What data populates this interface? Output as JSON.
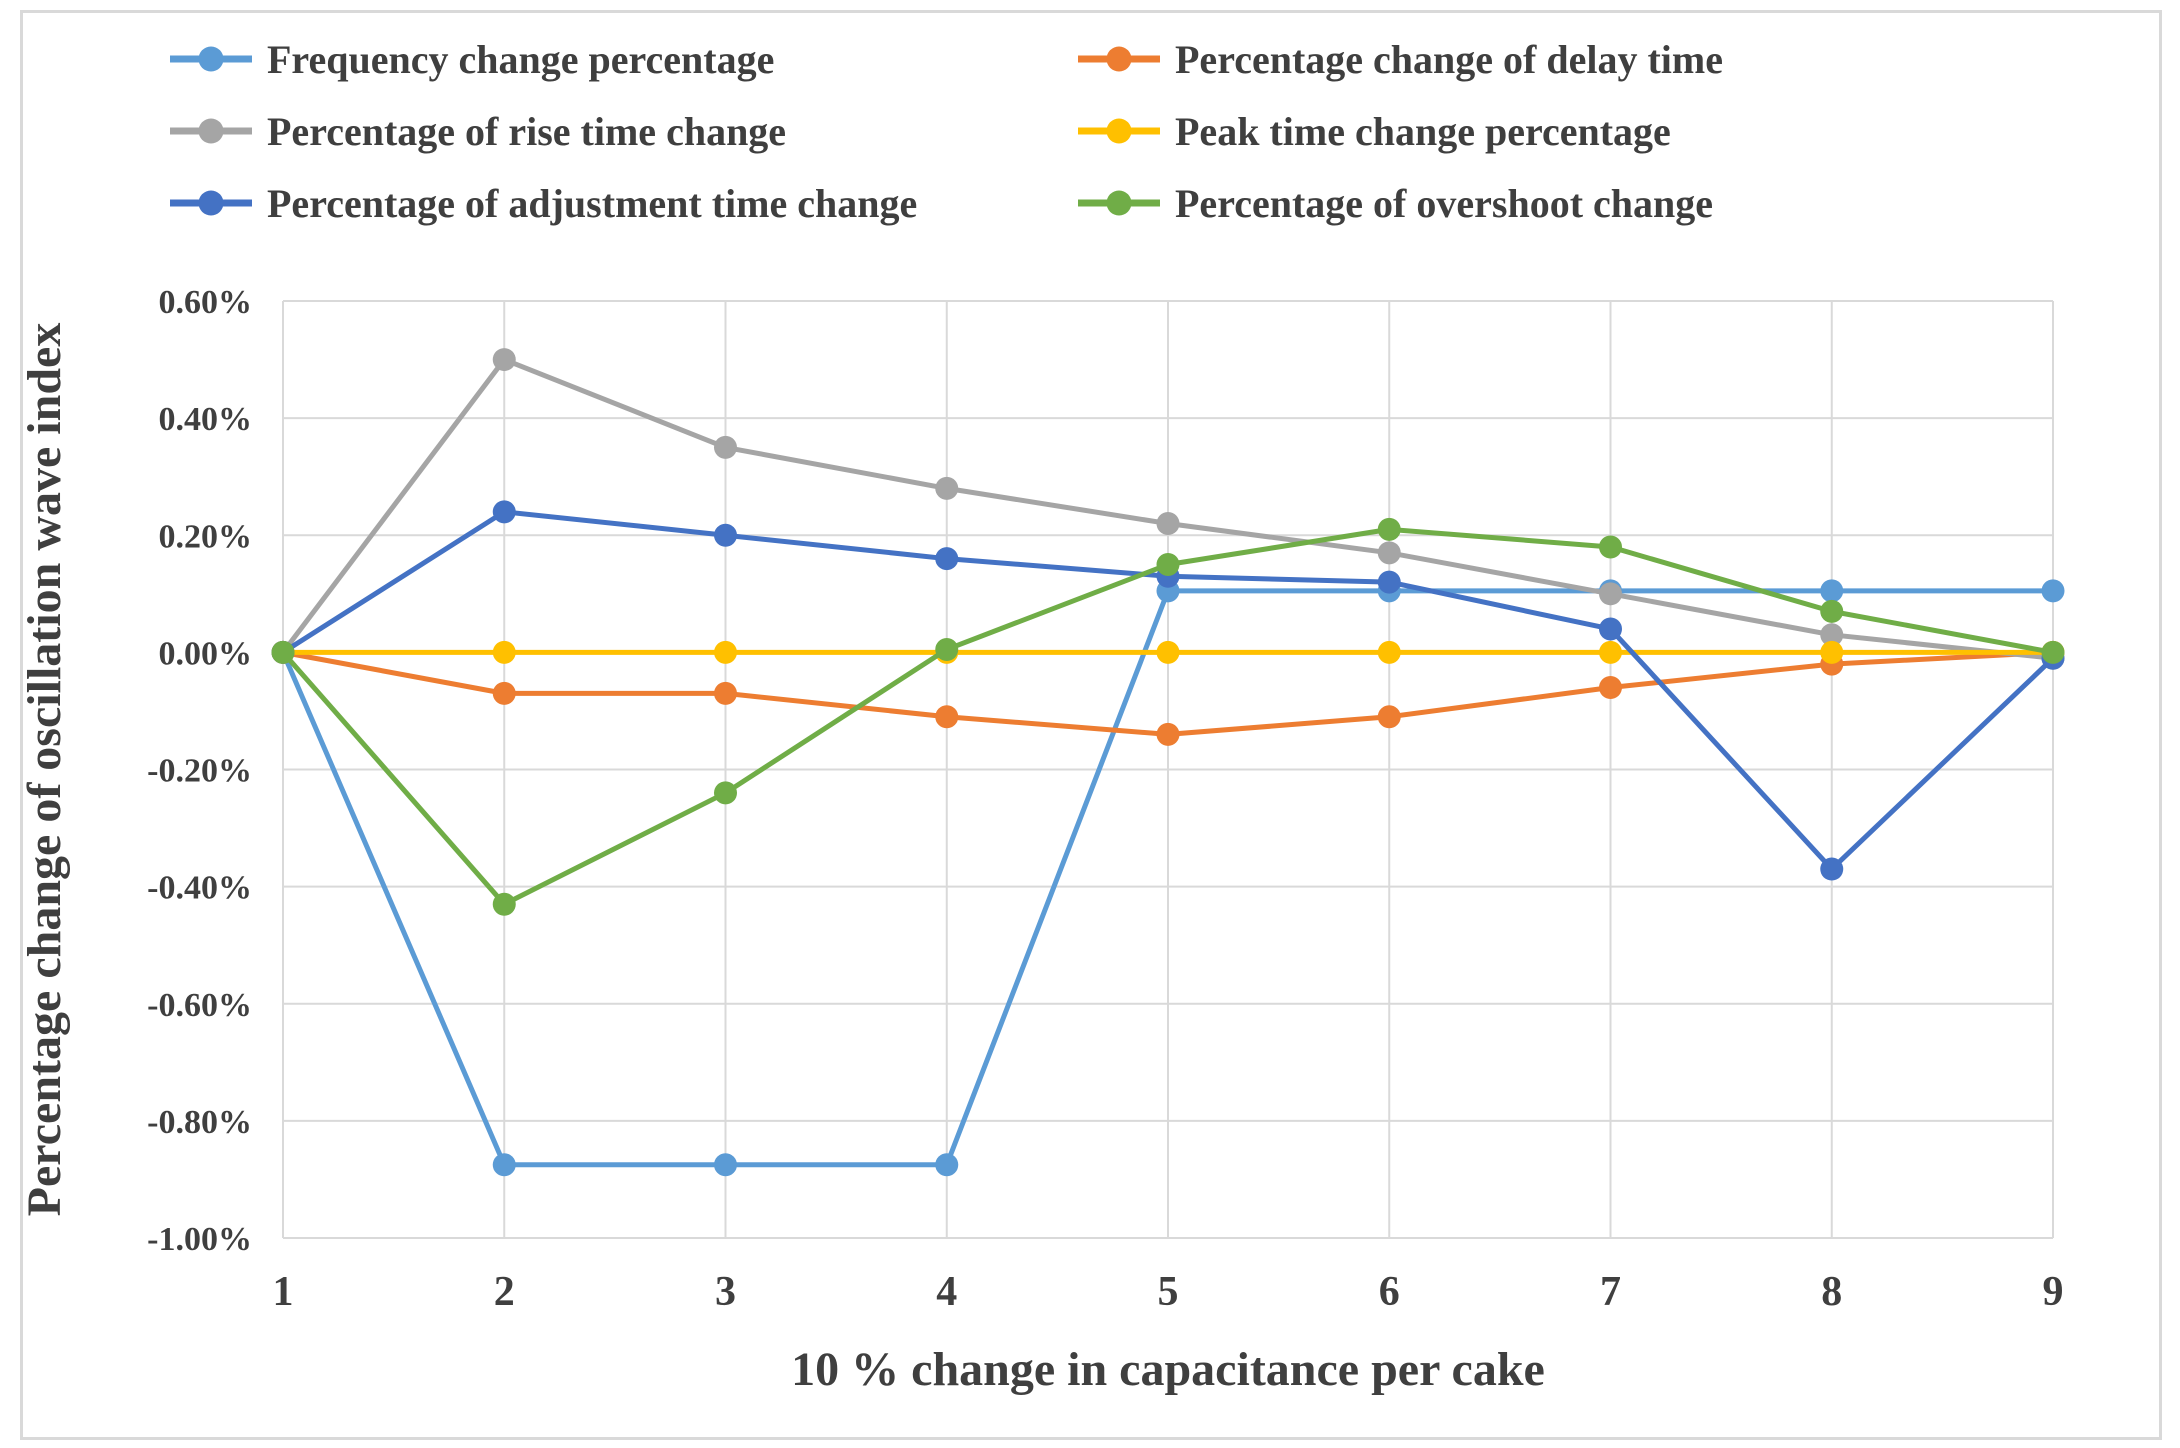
{
  "figure": {
    "background_color": "#FFFFFF",
    "border_color": "#D9D9D9",
    "gridline_color": "#D9D9D9",
    "text_color": "#3F3F3F"
  },
  "chart_data": {
    "type": "line",
    "title": "",
    "xlabel": "10 % change in capacitance per cake",
    "ylabel": "Percentage change of oscillation wave index",
    "x": [
      1,
      2,
      3,
      4,
      5,
      6,
      7,
      8,
      9
    ],
    "x_tick_labels": [
      "1",
      "2",
      "3",
      "4",
      "5",
      "6",
      "7",
      "8",
      "9"
    ],
    "y_tick_labels": [
      "0.60%",
      "0.40%",
      "0.20%",
      "0.00%",
      "-0.20%",
      "-0.40%",
      "-0.60%",
      "-0.80%",
      "-1.00%"
    ],
    "ylim": [
      -1.0,
      0.6
    ],
    "y_step": 0.2,
    "y_unit": "percent",
    "grid": true,
    "marker": "circle",
    "legend_position": "top-left-two-columns",
    "series": [
      {
        "name": "Frequency change percentage",
        "color": "#5B9BD5",
        "values": [
          0,
          -0.875,
          -0.875,
          -0.875,
          0.105,
          0.105,
          0.105,
          0.105,
          0.105
        ]
      },
      {
        "name": "Percentage change of delay time",
        "color": "#ED7D31",
        "values": [
          0,
          -0.07,
          -0.07,
          -0.11,
          -0.14,
          -0.11,
          -0.06,
          -0.02,
          0
        ]
      },
      {
        "name": "Percentage of rise time change",
        "color": "#A5A5A5",
        "values": [
          0,
          0.5,
          0.35,
          0.28,
          0.22,
          0.17,
          0.1,
          0.03,
          -0.01
        ]
      },
      {
        "name": "Peak time change percentage",
        "color": "#FFC000",
        "values": [
          0,
          0,
          0,
          0,
          0,
          0,
          0,
          0,
          0
        ]
      },
      {
        "name": "Percentage of adjustment time change",
        "color": "#4472C4",
        "values": [
          0,
          0.24,
          0.2,
          0.16,
          0.13,
          0.12,
          0.04,
          -0.37,
          -0.01
        ]
      },
      {
        "name": "Percentage of overshoot change",
        "color": "#70AD47",
        "values": [
          0,
          -0.43,
          -0.24,
          0.005,
          0.15,
          0.21,
          0.18,
          0.07,
          0
        ]
      }
    ]
  }
}
